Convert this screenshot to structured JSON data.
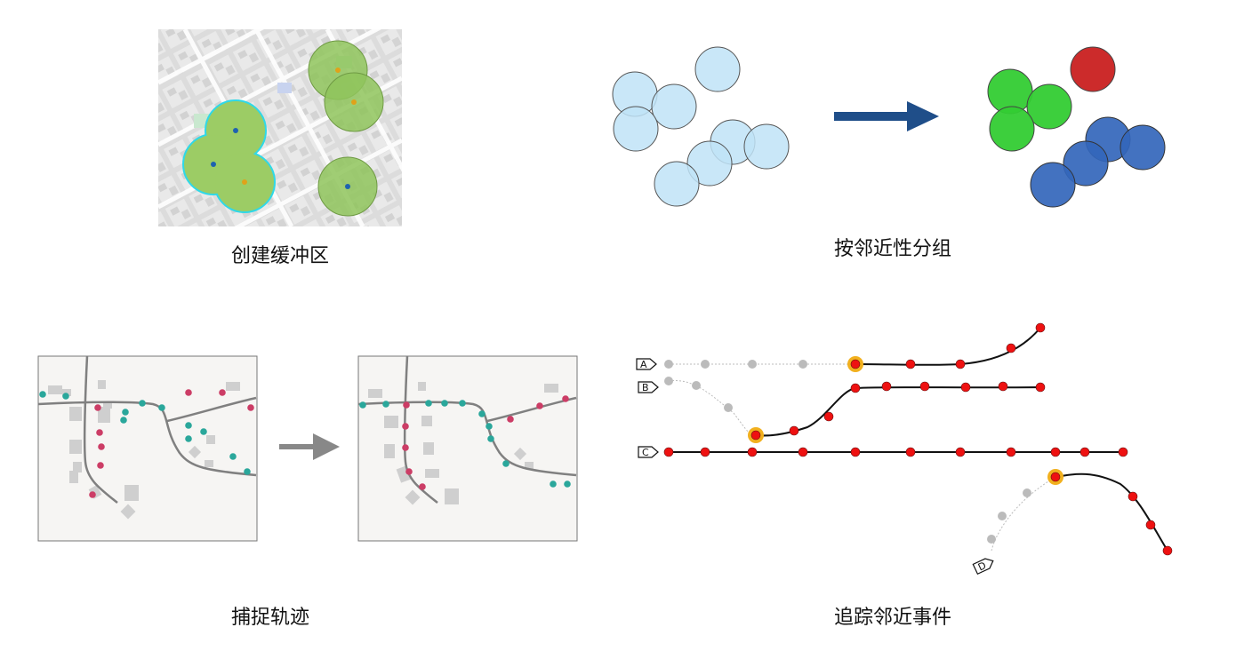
{
  "panels": {
    "buffer": {
      "caption": "创建缓冲区"
    },
    "group": {
      "caption": "按邻近性分组"
    },
    "snap": {
      "caption": "捕捉轨迹"
    },
    "trace": {
      "caption": "追踪邻近事件",
      "track_labels": [
        "A",
        "B",
        "C",
        "D"
      ]
    }
  },
  "colors": {
    "light_blue": "#bfe3f7",
    "green_group": "#33cc33",
    "red_group": "#cc2b2b",
    "blue_group": "#3366bb",
    "arrow_navy": "#1f4e89",
    "arrow_gray": "#888888",
    "teal_point": "#2aa79b",
    "pink_point": "#cc3d66",
    "track_red": "#ee1111",
    "highlight_gold": "#f2b01e",
    "faded_gray": "#bbbbbb"
  }
}
